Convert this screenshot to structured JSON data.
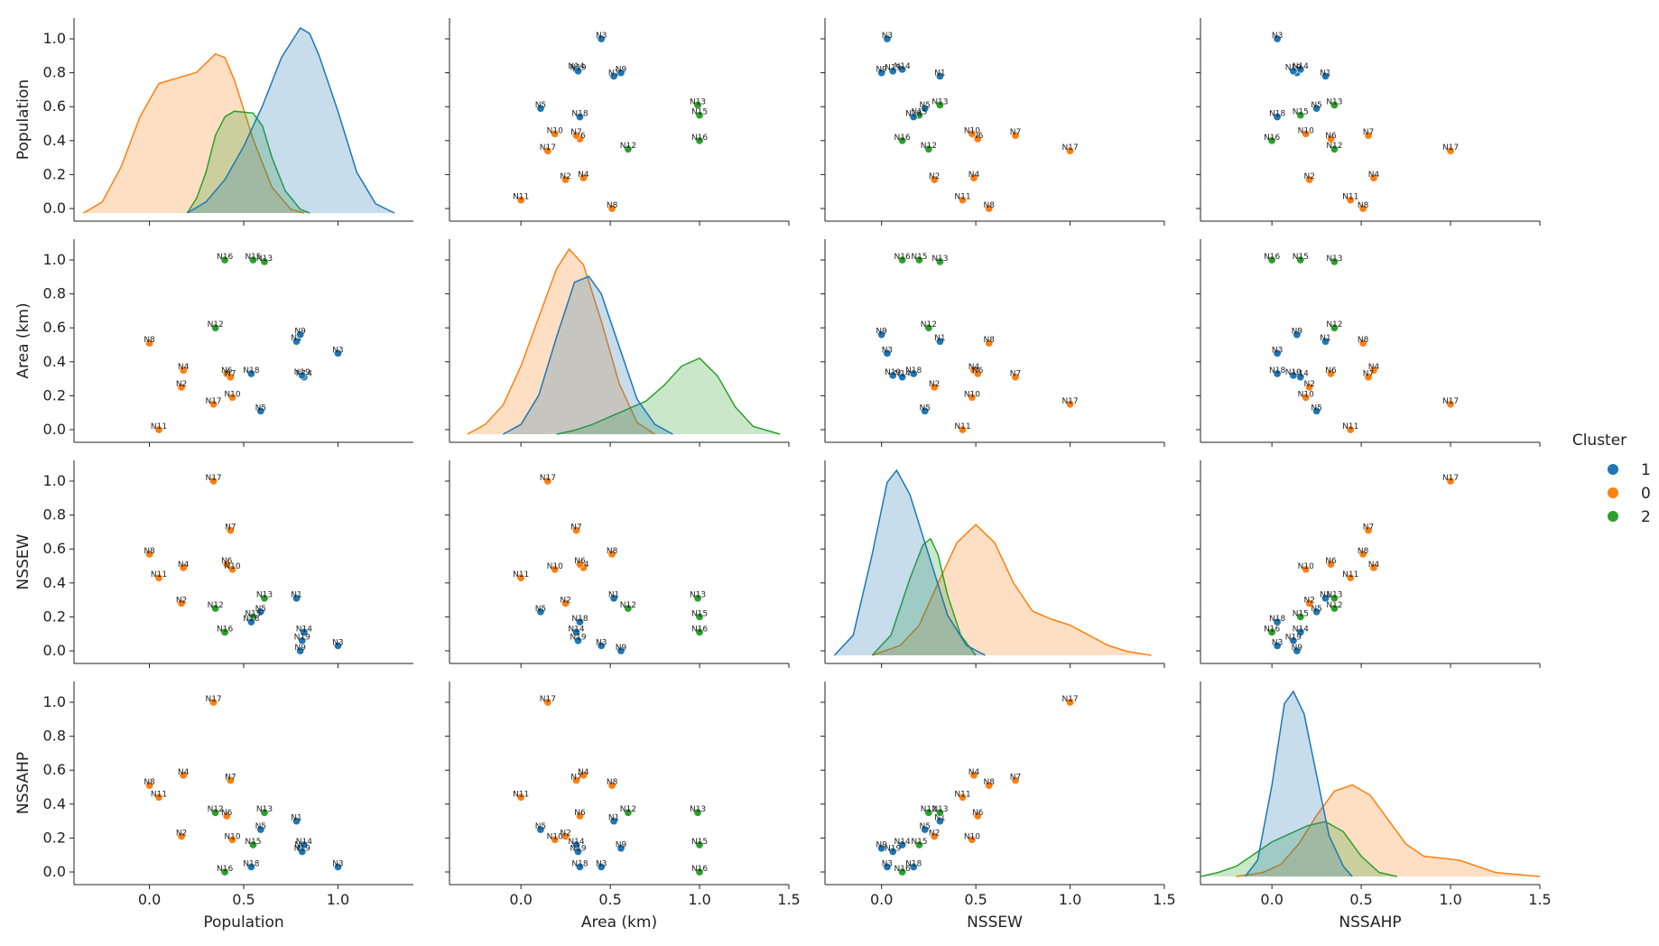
{
  "chart_data": {
    "type": "pairplot",
    "variables": [
      "Population",
      "Area (km)",
      "NSSEW",
      "NSSAHP"
    ],
    "diag_kind": "kde",
    "legend": {
      "title": "Cluster",
      "placement": "right",
      "entries": [
        {
          "label": "1",
          "color": "#1f77b4"
        },
        {
          "label": "0",
          "color": "#ff7f0e"
        },
        {
          "label": "2",
          "color": "#2ca02c"
        }
      ]
    },
    "axes": {
      "Population": {
        "range": [
          -0.4,
          1.4
        ],
        "ticks": [
          "0.0",
          "0.5",
          "1.0"
        ],
        "tick_values": [
          0,
          0.5,
          1.0
        ]
      },
      "Area (km)": {
        "range": [
          -0.4,
          1.5
        ],
        "ticks": [
          "0.0",
          "0.5",
          "1.0",
          "1.5"
        ],
        "tick_values": [
          0,
          0.5,
          1.0,
          1.5
        ]
      },
      "NSSEW": {
        "range": [
          -0.3,
          1.5
        ],
        "ticks": [
          "0.0",
          "0.5",
          "1.0",
          "1.5"
        ],
        "tick_values": [
          0,
          0.5,
          1.0,
          1.5
        ]
      },
      "NSSAHP": {
        "range": [
          -0.4,
          1.5
        ],
        "ticks": [
          "0.0",
          "0.5",
          "1.0",
          "1.5"
        ],
        "tick_values": [
          0,
          0.5,
          1.0,
          1.5
        ]
      },
      "y_ticks": [
        "0.0",
        "0.2",
        "0.4",
        "0.6",
        "0.8",
        "1.0"
      ],
      "y_tick_values": [
        0,
        0.2,
        0.4,
        0.6,
        0.8,
        1.0
      ]
    },
    "points": [
      {
        "label": "N1",
        "cluster": "1",
        "values": [
          0.78,
          0.52,
          0.31,
          0.3
        ]
      },
      {
        "label": "N2",
        "cluster": "0",
        "values": [
          0.17,
          0.25,
          0.28,
          0.21
        ]
      },
      {
        "label": "N3",
        "cluster": "1",
        "values": [
          1.0,
          0.45,
          0.03,
          0.03
        ]
      },
      {
        "label": "N4",
        "cluster": "0",
        "values": [
          0.18,
          0.35,
          0.49,
          0.57
        ]
      },
      {
        "label": "N5",
        "cluster": "1",
        "values": [
          0.59,
          0.11,
          0.23,
          0.25
        ]
      },
      {
        "label": "N6",
        "cluster": "0",
        "values": [
          0.41,
          0.33,
          0.51,
          0.33
        ]
      },
      {
        "label": "N7",
        "cluster": "0",
        "values": [
          0.43,
          0.31,
          0.71,
          0.54
        ]
      },
      {
        "label": "N8",
        "cluster": "0",
        "values": [
          0.0,
          0.51,
          0.57,
          0.51
        ]
      },
      {
        "label": "N9",
        "cluster": "1",
        "values": [
          0.8,
          0.56,
          0.0,
          0.14
        ]
      },
      {
        "label": "N10",
        "cluster": "0",
        "values": [
          0.44,
          0.19,
          0.48,
          0.19
        ]
      },
      {
        "label": "N11",
        "cluster": "0",
        "values": [
          0.05,
          0.0,
          0.43,
          0.44
        ]
      },
      {
        "label": "N12",
        "cluster": "2",
        "values": [
          0.35,
          0.6,
          0.25,
          0.35
        ]
      },
      {
        "label": "N13",
        "cluster": "2",
        "values": [
          0.61,
          0.99,
          0.31,
          0.35
        ]
      },
      {
        "label": "N14",
        "cluster": "1",
        "values": [
          0.82,
          0.31,
          0.11,
          0.16
        ]
      },
      {
        "label": "N15",
        "cluster": "2",
        "values": [
          0.55,
          1.0,
          0.2,
          0.16
        ]
      },
      {
        "label": "N16",
        "cluster": "2",
        "values": [
          0.4,
          1.0,
          0.11,
          0.0
        ]
      },
      {
        "label": "N17",
        "cluster": "0",
        "values": [
          0.34,
          0.15,
          1.0,
          1.0
        ]
      },
      {
        "label": "N18",
        "cluster": "1",
        "values": [
          0.54,
          0.33,
          0.17,
          0.03
        ]
      },
      {
        "label": "N19",
        "cluster": "1",
        "values": [
          0.81,
          0.32,
          0.06,
          0.12
        ]
      }
    ],
    "kde": {
      "Population": {
        "1": [
          [
            0.2,
            0.0
          ],
          [
            0.3,
            0.06
          ],
          [
            0.4,
            0.18
          ],
          [
            0.5,
            0.36
          ],
          [
            0.6,
            0.58
          ],
          [
            0.7,
            0.84
          ],
          [
            0.8,
            1.0
          ],
          [
            0.85,
            0.97
          ],
          [
            0.9,
            0.85
          ],
          [
            1.0,
            0.55
          ],
          [
            1.1,
            0.22
          ],
          [
            1.2,
            0.05
          ],
          [
            1.3,
            0.0
          ]
        ],
        "0": [
          [
            -0.35,
            0.0
          ],
          [
            -0.25,
            0.06
          ],
          [
            -0.15,
            0.25
          ],
          [
            -0.05,
            0.52
          ],
          [
            0.05,
            0.7
          ],
          [
            0.15,
            0.73
          ],
          [
            0.25,
            0.76
          ],
          [
            0.35,
            0.86
          ],
          [
            0.4,
            0.84
          ],
          [
            0.45,
            0.72
          ],
          [
            0.55,
            0.4
          ],
          [
            0.65,
            0.14
          ],
          [
            0.75,
            0.02
          ],
          [
            0.82,
            0.0
          ]
        ],
        "2": [
          [
            0.2,
            0.0
          ],
          [
            0.25,
            0.08
          ],
          [
            0.3,
            0.22
          ],
          [
            0.35,
            0.42
          ],
          [
            0.4,
            0.52
          ],
          [
            0.45,
            0.55
          ],
          [
            0.55,
            0.54
          ],
          [
            0.6,
            0.47
          ],
          [
            0.65,
            0.3
          ],
          [
            0.72,
            0.12
          ],
          [
            0.8,
            0.02
          ],
          [
            0.85,
            0.0
          ]
        ]
      },
      "Area (km)": {
        "1": [
          [
            -0.1,
            0.0
          ],
          [
            0.0,
            0.05
          ],
          [
            0.1,
            0.2
          ],
          [
            0.2,
            0.5
          ],
          [
            0.3,
            0.78
          ],
          [
            0.38,
            0.81
          ],
          [
            0.45,
            0.72
          ],
          [
            0.55,
            0.45
          ],
          [
            0.65,
            0.18
          ],
          [
            0.75,
            0.05
          ],
          [
            0.85,
            0.0
          ]
        ],
        "0": [
          [
            -0.3,
            0.0
          ],
          [
            -0.2,
            0.05
          ],
          [
            -0.1,
            0.15
          ],
          [
            0.0,
            0.35
          ],
          [
            0.1,
            0.6
          ],
          [
            0.2,
            0.85
          ],
          [
            0.27,
            0.95
          ],
          [
            0.35,
            0.87
          ],
          [
            0.45,
            0.58
          ],
          [
            0.55,
            0.26
          ],
          [
            0.65,
            0.06
          ],
          [
            0.75,
            0.0
          ]
        ],
        "2": [
          [
            0.2,
            0.0
          ],
          [
            0.3,
            0.02
          ],
          [
            0.4,
            0.05
          ],
          [
            0.5,
            0.09
          ],
          [
            0.6,
            0.13
          ],
          [
            0.7,
            0.17
          ],
          [
            0.8,
            0.25
          ],
          [
            0.9,
            0.35
          ],
          [
            1.0,
            0.39
          ],
          [
            1.1,
            0.3
          ],
          [
            1.2,
            0.14
          ],
          [
            1.3,
            0.04
          ],
          [
            1.45,
            0.0
          ]
        ]
      },
      "NSSEW": {
        "1": [
          [
            -0.25,
            0.0
          ],
          [
            -0.15,
            0.1
          ],
          [
            -0.05,
            0.5
          ],
          [
            0.03,
            0.86
          ],
          [
            0.08,
            0.92
          ],
          [
            0.15,
            0.8
          ],
          [
            0.25,
            0.5
          ],
          [
            0.35,
            0.2
          ],
          [
            0.45,
            0.05
          ],
          [
            0.55,
            0.0
          ]
        ],
        "0": [
          [
            -0.05,
            0.0
          ],
          [
            0.1,
            0.05
          ],
          [
            0.2,
            0.15
          ],
          [
            0.3,
            0.36
          ],
          [
            0.4,
            0.56
          ],
          [
            0.5,
            0.65
          ],
          [
            0.6,
            0.56
          ],
          [
            0.7,
            0.36
          ],
          [
            0.8,
            0.22
          ],
          [
            0.9,
            0.18
          ],
          [
            1.0,
            0.15
          ],
          [
            1.1,
            0.1
          ],
          [
            1.2,
            0.05
          ],
          [
            1.3,
            0.02
          ],
          [
            1.43,
            0.0
          ]
        ],
        "2": [
          [
            -0.05,
            0.0
          ],
          [
            0.05,
            0.1
          ],
          [
            0.15,
            0.38
          ],
          [
            0.22,
            0.55
          ],
          [
            0.26,
            0.58
          ],
          [
            0.3,
            0.5
          ],
          [
            0.35,
            0.3
          ],
          [
            0.42,
            0.1
          ],
          [
            0.5,
            0.0
          ]
        ]
      },
      "NSSAHP": {
        "1": [
          [
            -0.15,
            0.0
          ],
          [
            -0.08,
            0.08
          ],
          [
            0.0,
            0.45
          ],
          [
            0.07,
            0.85
          ],
          [
            0.12,
            0.91
          ],
          [
            0.18,
            0.8
          ],
          [
            0.25,
            0.5
          ],
          [
            0.32,
            0.2
          ],
          [
            0.4,
            0.05
          ],
          [
            0.45,
            0.0
          ]
        ],
        "0": [
          [
            -0.2,
            0.0
          ],
          [
            -0.05,
            0.02
          ],
          [
            0.05,
            0.06
          ],
          [
            0.15,
            0.16
          ],
          [
            0.25,
            0.3
          ],
          [
            0.35,
            0.42
          ],
          [
            0.45,
            0.45
          ],
          [
            0.55,
            0.4
          ],
          [
            0.65,
            0.28
          ],
          [
            0.75,
            0.16
          ],
          [
            0.85,
            0.1
          ],
          [
            0.95,
            0.09
          ],
          [
            1.05,
            0.08
          ],
          [
            1.15,
            0.05
          ],
          [
            1.25,
            0.02
          ],
          [
            1.5,
            0.0
          ]
        ],
        "2": [
          [
            -0.4,
            0.0
          ],
          [
            -0.3,
            0.02
          ],
          [
            -0.2,
            0.05
          ],
          [
            -0.1,
            0.11
          ],
          [
            0.0,
            0.17
          ],
          [
            0.1,
            0.21
          ],
          [
            0.2,
            0.25
          ],
          [
            0.3,
            0.27
          ],
          [
            0.4,
            0.22
          ],
          [
            0.5,
            0.1
          ],
          [
            0.6,
            0.02
          ],
          [
            0.7,
            0.0
          ]
        ]
      }
    },
    "kde_max": {
      "Population": 1.0,
      "Area (km)": 0.95,
      "NSSEW": 0.92,
      "NSSAHP": 0.91
    }
  }
}
